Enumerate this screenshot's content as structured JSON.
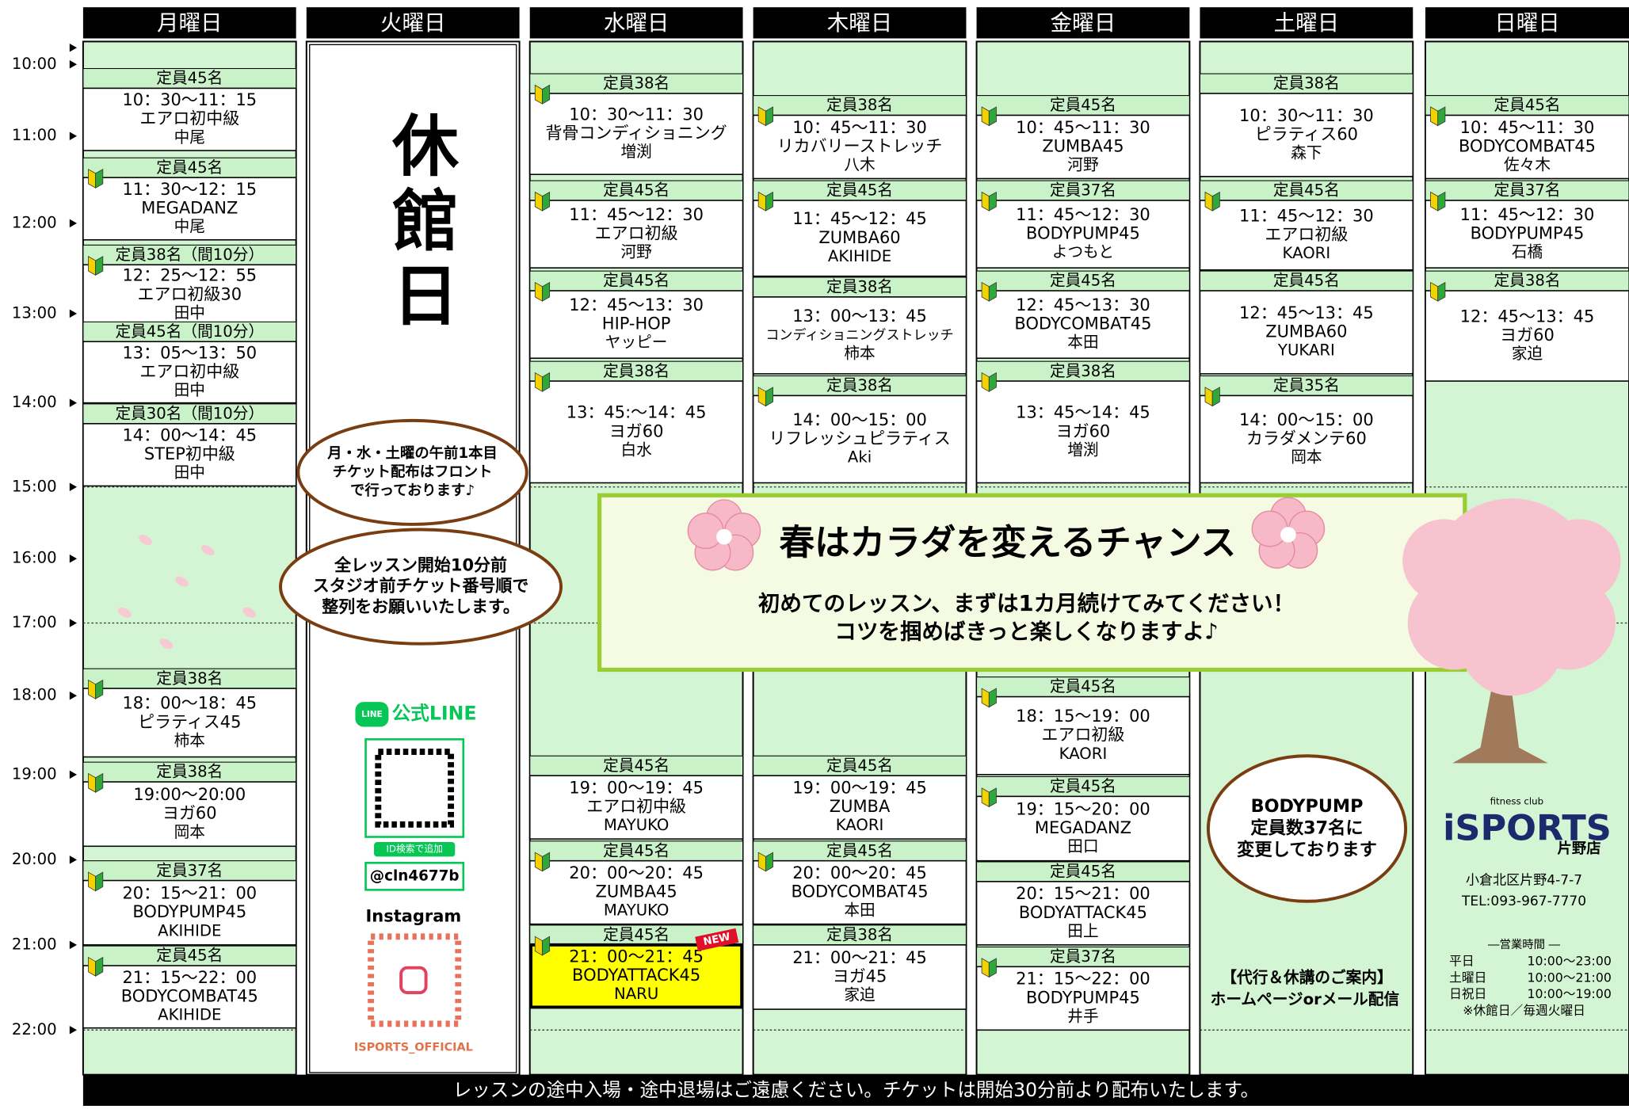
{
  "time_labels": [
    "10:00",
    "11:00",
    "12:00",
    "13:00",
    "14:00",
    "15:00",
    "16:00",
    "17:00",
    "18:00",
    "19:00",
    "20:00",
    "21:00",
    "22:00"
  ],
  "days": [
    {
      "name": "月曜日",
      "lessons": [
        {
          "capacity": "定員45名",
          "time": "10：30～11：15",
          "name": "エアロ初中級",
          "instructor": "中尾"
        },
        {
          "capacity": "定員45名",
          "time": "11：30～12：15",
          "name": "MEGADANZ",
          "instructor": "中尾"
        },
        {
          "capacity": "定員38名（間10分）",
          "time": "12：25～12：55",
          "name": "エアロ初級30",
          "instructor": "田中"
        },
        {
          "capacity": "定員45名（間10分）",
          "time": "13：05～13：50",
          "name": "エアロ初中級",
          "instructor": "田中"
        },
        {
          "capacity": "定員30名（間10分）",
          "time": "14：00～14：45",
          "name": "STEP初中級",
          "instructor": "田中"
        },
        {
          "capacity": "定員38名",
          "time": "18：00～18：45",
          "name": "ピラティス45",
          "instructor": "柿本"
        },
        {
          "capacity": "定員38名",
          "time": "19:00～20:00",
          "name": "ヨガ60",
          "instructor": "岡本"
        },
        {
          "capacity": "定員37名",
          "time": "20：15～21：00",
          "name": "BODYPUMP45",
          "instructor": "AKIHIDE"
        },
        {
          "capacity": "定員45名",
          "time": "21：15～22：00",
          "name": "BODYCOMBAT45",
          "instructor": "AKIHIDE"
        }
      ]
    },
    {
      "name": "火曜日",
      "closed": "休館日",
      "lessons": []
    },
    {
      "name": "水曜日",
      "lessons": [
        {
          "capacity": "定員38名",
          "time": "10：30～11：30",
          "name": "背骨コンディショニング",
          "instructor": "増渕"
        },
        {
          "capacity": "定員45名",
          "time": "11：45～12：30",
          "name": "エアロ初級",
          "instructor": "河野"
        },
        {
          "capacity": "定員45名",
          "time": "12：45～13：30",
          "name": "HIP-HOP",
          "instructor": "ヤッピー"
        },
        {
          "capacity": "定員38名",
          "time": "13：45:～14：45",
          "name": "ヨガ60",
          "instructor": "白水"
        },
        {
          "capacity": "定員45名",
          "time": "19：00～19：45",
          "name": "エアロ初中級",
          "instructor": "MAYUKO"
        },
        {
          "capacity": "定員45名",
          "time": "20：00～20：45",
          "name": "ZUMBA45",
          "instructor": "MAYUKO"
        },
        {
          "capacity": "定員45名",
          "time": "21：00～21：45",
          "name": "BODYATTACK45",
          "instructor": "NARU",
          "badge": "NEW"
        }
      ]
    },
    {
      "name": "木曜日",
      "lessons": [
        {
          "capacity": "定員38名",
          "time": "10：45～11：30",
          "name": "リカバリーストレッチ",
          "instructor": "八木"
        },
        {
          "capacity": "定員45名",
          "time": "11：45～12：45",
          "name": "ZUMBA60",
          "instructor": "AKIHIDE"
        },
        {
          "capacity": "定員38名",
          "time": "13：00～13：45",
          "name": "コンディショニングストレッチ",
          "instructor": "柿本"
        },
        {
          "capacity": "定員38名",
          "time": "14：00～15：00",
          "name": "リフレッシュピラティス",
          "instructor": "Aki"
        },
        {
          "capacity": "定員45名",
          "time": "19：00～19：45",
          "name": "ZUMBA",
          "instructor": "KAORI"
        },
        {
          "capacity": "定員45名",
          "time": "20：00～20：45",
          "name": "BODYCOMBAT45",
          "instructor": "本田"
        },
        {
          "capacity": "定員38名",
          "time": "21：00～21：45",
          "name": "ヨガ45",
          "instructor": "家迫"
        }
      ]
    },
    {
      "name": "金曜日",
      "lessons": [
        {
          "capacity": "定員45名",
          "time": "10：45～11：30",
          "name": "ZUMBA45",
          "instructor": "河野"
        },
        {
          "capacity": "定員37名",
          "time": "11：45～12：30",
          "name": "BODYPUMP45",
          "instructor": "よつもと"
        },
        {
          "capacity": "定員45名",
          "time": "12：45～13：30",
          "name": "BODYCOMBAT45",
          "instructor": "本田"
        },
        {
          "capacity": "定員38名",
          "time": "13：45～14：45",
          "name": "ヨガ60",
          "instructor": "増渕"
        },
        {
          "capacity": "定員45名",
          "time": "18：15～19：00",
          "name": "エアロ初級",
          "instructor": "KAORI"
        },
        {
          "capacity": "定員45名",
          "time": "19：15～20：00",
          "name": "MEGADANZ",
          "instructor": "田口"
        },
        {
          "capacity": "定員45名",
          "time": "20：15～21：00",
          "name": "BODYATTACK45",
          "instructor": "田上"
        },
        {
          "capacity": "定員37名",
          "time": "21：15～22：00",
          "name": "BODYPUMP45",
          "instructor": "井手"
        }
      ]
    },
    {
      "name": "土曜日",
      "lessons": [
        {
          "capacity": "定員38名",
          "time": "10：30～11：30",
          "name": "ピラティス60",
          "instructor": "森下"
        },
        {
          "capacity": "定員45名",
          "time": "11：45～12：30",
          "name": "エアロ初級",
          "instructor": "KAORI"
        },
        {
          "capacity": "定員45名",
          "time": "12：45～13：45",
          "name": "ZUMBA60",
          "instructor": "YUKARI"
        },
        {
          "capacity": "定員35名",
          "time": "14：00～15：00",
          "name": "カラダメンテ60",
          "instructor": "岡本"
        }
      ]
    },
    {
      "name": "日曜日",
      "lessons": [
        {
          "capacity": "定員45名",
          "time": "10：45～11：30",
          "name": "BODYCOMBAT45",
          "instructor": "佐々木"
        },
        {
          "capacity": "定員37名",
          "time": "11：45～12：30",
          "name": "BODYPUMP45",
          "instructor": "石橋"
        },
        {
          "capacity": "定員38名",
          "time": "12：45～13：45",
          "name": "ヨガ60",
          "instructor": "家迫"
        }
      ]
    }
  ],
  "notices": [
    {
      "lines": [
        "月・水・土曜の午前1本目",
        "チケット配布はフロント",
        "で行っております♪"
      ]
    },
    {
      "lines": [
        "全レッスン開始10分前",
        "スタジオ前チケット番号順で",
        "整列をお願いいたします。"
      ]
    },
    {
      "lines": [
        "BODYPUMP",
        "定員数37名に",
        "変更しております"
      ]
    },
    {
      "lines": [
        "【代行＆休講のご案内】",
        "ホームページorメール配信"
      ]
    }
  ],
  "banner": {
    "title": "春はカラダを変えるチャンス",
    "lines": [
      "初めてのレッスン、まずは1カ月続けてみてください！",
      "コツを掴めばきっと楽しくなりますよ♪"
    ]
  },
  "social": {
    "line_icon": "LINE",
    "line_label": "公式LINE",
    "id_hint": "ID検索で追加",
    "line_id": "@cln4677b",
    "instagram": "Instagram",
    "instagram_id": "ISPORTS_OFFICIAL"
  },
  "shop": {
    "tagline": "fitness club",
    "logo": "iSPORTS",
    "branch": "片野店",
    "address": "小倉北区片野4-7-7",
    "tel": "TEL:093-967-7770",
    "hours_title": "―営業時間 ―",
    "hours": [
      [
        "平日",
        "10:00～23:00"
      ],
      [
        "土曜日",
        "10:00～21:00"
      ],
      [
        "日祝日",
        "10:00～19:00"
      ]
    ],
    "closed_note": "※休館日／毎週火曜日"
  },
  "footer": "レッスンの途中入場・途中退場はご遠慮ください。チケットは開始30分前より配布いたします。"
}
